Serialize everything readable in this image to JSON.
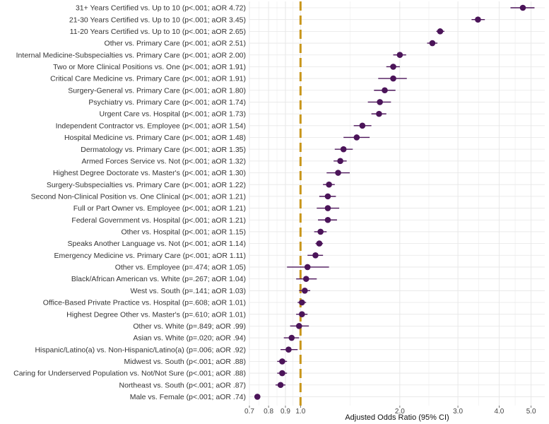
{
  "chart_data": {
    "type": "scatter",
    "subtype": "forest-plot",
    "title": "",
    "xlabel": "Adjusted Odds Ratio (95% CI)",
    "ylabel": "",
    "x_scale": "log",
    "xlim": [
      0.7,
      5.5
    ],
    "x_ticks": [
      0.7,
      0.8,
      0.9,
      1.0,
      2.0,
      3.0,
      4.0,
      5.0
    ],
    "x_tick_labels": [
      "0.7",
      "0.8",
      "0.9",
      "1.0",
      "2.0",
      "3.0",
      "4.0",
      "5.0"
    ],
    "reference_line": 1.0,
    "grid": true,
    "colors": {
      "point": "#4b1459",
      "reference": "#c9961a",
      "grid": "#e6e6e6"
    },
    "rows": [
      {
        "label": "31+ Years Certified vs. Up to 10 (p<.001; aOR 4.72)",
        "or": 4.72,
        "lo": 4.33,
        "hi": 5.12
      },
      {
        "label": "21-30 Years Certified vs. Up to 10 (p<.001; aOR 3.45)",
        "or": 3.45,
        "lo": 3.3,
        "hi": 3.62
      },
      {
        "label": "11-20 Years Certified vs. Up to 10 (p<.001; aOR 2.65)",
        "or": 2.65,
        "lo": 2.58,
        "hi": 2.73
      },
      {
        "label": "Other vs. Primary Care (p<.001; aOR 2.51)",
        "or": 2.51,
        "lo": 2.42,
        "hi": 2.6
      },
      {
        "label": "Internal Medicine-Subspecialties vs. Primary Care (p<.001; aOR 2.00)",
        "or": 2.0,
        "lo": 1.91,
        "hi": 2.09
      },
      {
        "label": "Two or More Clinical Positions vs. One (p<.001; aOR 1.91)",
        "or": 1.91,
        "lo": 1.82,
        "hi": 2.0
      },
      {
        "label": "Critical Care Medicine vs. Primary Care (p<.001; aOR 1.91)",
        "or": 1.91,
        "lo": 1.72,
        "hi": 2.1
      },
      {
        "label": "Surgery-General vs. Primary Care (p<.001; aOR 1.80)",
        "or": 1.8,
        "lo": 1.67,
        "hi": 1.94
      },
      {
        "label": "Psychiatry vs. Primary Care (p<.001; aOR 1.74)",
        "or": 1.74,
        "lo": 1.6,
        "hi": 1.88
      },
      {
        "label": "Urgent Care vs. Hospital (p<.001; aOR 1.73)",
        "or": 1.73,
        "lo": 1.64,
        "hi": 1.82
      },
      {
        "label": "Independent Contractor vs. Employee (p<.001; aOR 1.54)",
        "or": 1.54,
        "lo": 1.45,
        "hi": 1.64
      },
      {
        "label": "Hospital Medicine vs. Primary Care (p<.001; aOR 1.48)",
        "or": 1.48,
        "lo": 1.35,
        "hi": 1.62
      },
      {
        "label": "Dermatology vs. Primary Care (p<.001; aOR 1.35)",
        "or": 1.35,
        "lo": 1.27,
        "hi": 1.44
      },
      {
        "label": "Armed Forces Service vs. Not (p<.001; aOR 1.32)",
        "or": 1.32,
        "lo": 1.26,
        "hi": 1.38
      },
      {
        "label": "Highest Degree Doctorate vs. Master's (p<.001; aOR 1.30)",
        "or": 1.3,
        "lo": 1.2,
        "hi": 1.41
      },
      {
        "label": "Surgery-Subspecialties vs. Primary Care (p<.001; aOR 1.22)",
        "or": 1.22,
        "lo": 1.17,
        "hi": 1.27
      },
      {
        "label": "Second Non-Clinical Position vs. One Clinical (p<.001; aOR 1.21)",
        "or": 1.21,
        "lo": 1.14,
        "hi": 1.28
      },
      {
        "label": "Full or Part Owner vs. Employee (p<.001; aOR 1.21)",
        "or": 1.21,
        "lo": 1.12,
        "hi": 1.31
      },
      {
        "label": "Federal Government vs. Hospital (p<.001; aOR 1.21)",
        "or": 1.21,
        "lo": 1.13,
        "hi": 1.29
      },
      {
        "label": "Other vs. Hospital (p<.001; aOR 1.15)",
        "or": 1.15,
        "lo": 1.1,
        "hi": 1.2
      },
      {
        "label": "Speaks Another Language vs. Not (p<.001; aOR 1.14)",
        "or": 1.14,
        "lo": 1.11,
        "hi": 1.17
      },
      {
        "label": "Emergency Medicine vs. Primary Care (p<.001; aOR 1.11)",
        "or": 1.11,
        "lo": 1.05,
        "hi": 1.17
      },
      {
        "label": "Other vs. Employee (p=.474; aOR 1.05)",
        "or": 1.05,
        "lo": 0.91,
        "hi": 1.22
      },
      {
        "label": "Black/African American vs. White (p=.267; aOR 1.04)",
        "or": 1.04,
        "lo": 0.97,
        "hi": 1.12
      },
      {
        "label": "West vs. South (p=.141; aOR 1.03)",
        "or": 1.03,
        "lo": 0.99,
        "hi": 1.07
      },
      {
        "label": "Office-Based Private Practice vs. Hospital (p=.608; aOR 1.01)",
        "or": 1.01,
        "lo": 0.98,
        "hi": 1.04
      },
      {
        "label": "Highest Degree Other vs. Master's (p=.610; aOR 1.01)",
        "or": 1.01,
        "lo": 0.97,
        "hi": 1.05
      },
      {
        "label": "Other vs. White (p=.849; aOR .99)",
        "or": 0.99,
        "lo": 0.93,
        "hi": 1.06
      },
      {
        "label": "Asian vs. White (p=.020; aOR .94)",
        "or": 0.94,
        "lo": 0.89,
        "hi": 0.99
      },
      {
        "label": "Hispanic/Latino(a) vs. Non-Hispanic/Latino(a) (p=.006; aOR .92)",
        "or": 0.92,
        "lo": 0.87,
        "hi": 0.98
      },
      {
        "label": "Midwest vs. South (p<.001; aOR .88)",
        "or": 0.88,
        "lo": 0.85,
        "hi": 0.91
      },
      {
        "label": "Caring for Underserved Population vs. Not/Not Sure (p<.001; aOR .88)",
        "or": 0.88,
        "lo": 0.85,
        "hi": 0.91
      },
      {
        "label": "Northeast vs. South (p<.001; aOR .87)",
        "or": 0.87,
        "lo": 0.84,
        "hi": 0.9
      },
      {
        "label": "Male vs. Female (p<.001; aOR .74)",
        "or": 0.74,
        "lo": 0.725,
        "hi": 0.755
      }
    ]
  }
}
